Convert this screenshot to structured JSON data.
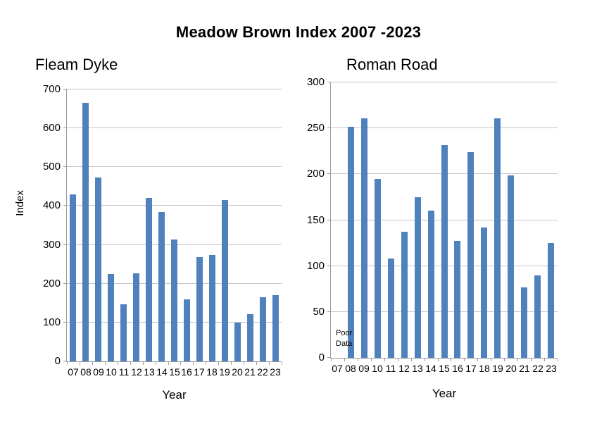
{
  "main_title": "Meadow Brown Index 2007 -2023",
  "colors": {
    "bar": "#4F81BD",
    "grid": "#C6C6C6",
    "axis": "#9B9B9B",
    "text": "#000000"
  },
  "chart_data": [
    {
      "type": "bar",
      "title": "Fleam Dyke",
      "xlabel": "Year",
      "ylabel": "Index",
      "ylim": [
        0,
        700
      ],
      "ytick_step": 100,
      "grid": true,
      "legend_position": "none",
      "categories": [
        "07",
        "08",
        "09",
        "10",
        "11",
        "12",
        "13",
        "14",
        "15",
        "16",
        "17",
        "18",
        "19",
        "20",
        "21",
        "22",
        "23"
      ],
      "values": [
        430,
        665,
        473,
        225,
        146,
        227,
        421,
        385,
        314,
        159,
        269,
        274,
        415,
        100,
        122,
        165,
        171
      ]
    },
    {
      "type": "bar",
      "title": "Roman Road",
      "xlabel": "Year",
      "ylabel": "",
      "ylim": [
        0,
        300
      ],
      "ytick_step": 50,
      "grid": true,
      "legend_position": "none",
      "categories": [
        "07",
        "08",
        "09",
        "10",
        "11",
        "12",
        "13",
        "14",
        "15",
        "16",
        "17",
        "18",
        "19",
        "20",
        "21",
        "22",
        "23"
      ],
      "values": [
        null,
        252,
        261,
        195,
        108,
        137,
        175,
        160,
        232,
        127,
        224,
        142,
        261,
        199,
        77,
        90,
        125
      ],
      "annotation": {
        "lines": [
          "Poor",
          "Data"
        ],
        "category": "07"
      }
    }
  ]
}
